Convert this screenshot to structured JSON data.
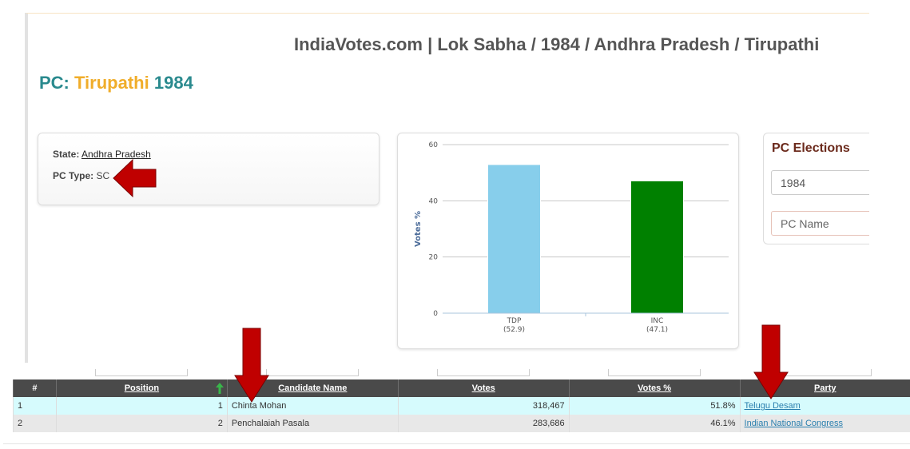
{
  "header": {
    "title": "IndiaVotes.com | Lok Sabha / 1984 / Andhra Pradesh / Tirupathi"
  },
  "pc_title": {
    "prefix": "PC:",
    "name": "Tirupathi",
    "year": "1984"
  },
  "info": {
    "state_label": "State:",
    "state_value": "Andhra Pradesh",
    "pc_type_label": "PC Type:",
    "pc_type_value": "SC"
  },
  "chart_data": {
    "type": "bar",
    "categories": [
      "TDP",
      "INC"
    ],
    "category_sublabels": [
      "(52.9)",
      "(47.1)"
    ],
    "values": [
      52.9,
      47.1
    ],
    "colors": [
      "#87ceeb",
      "#008000"
    ],
    "ylabel": "Votes %",
    "ylim": [
      0,
      60
    ],
    "yticks": [
      0,
      20,
      40,
      60
    ],
    "grid": true
  },
  "elections_panel": {
    "title": "PC Elections",
    "year_select": "1984",
    "pc_select": "PC Name"
  },
  "table": {
    "columns": [
      "#",
      "Position",
      "Candidate Name",
      "Votes",
      "Votes %",
      "Party"
    ],
    "rows": [
      {
        "num": "1",
        "position": "1",
        "candidate": "Chinta Mohan",
        "votes": "318,467",
        "votes_pct": "51.8%",
        "party": "Telugu Desam"
      },
      {
        "num": "2",
        "position": "2",
        "candidate": "Penchalaiah Pasala",
        "votes": "283,686",
        "votes_pct": "46.1%",
        "party": "Indian National Congress"
      }
    ]
  },
  "colors": {
    "teal": "#2a8a8e",
    "orange": "#f0ad2a",
    "annotation_red": "#c00000",
    "table_header": "#4a4a4a"
  }
}
